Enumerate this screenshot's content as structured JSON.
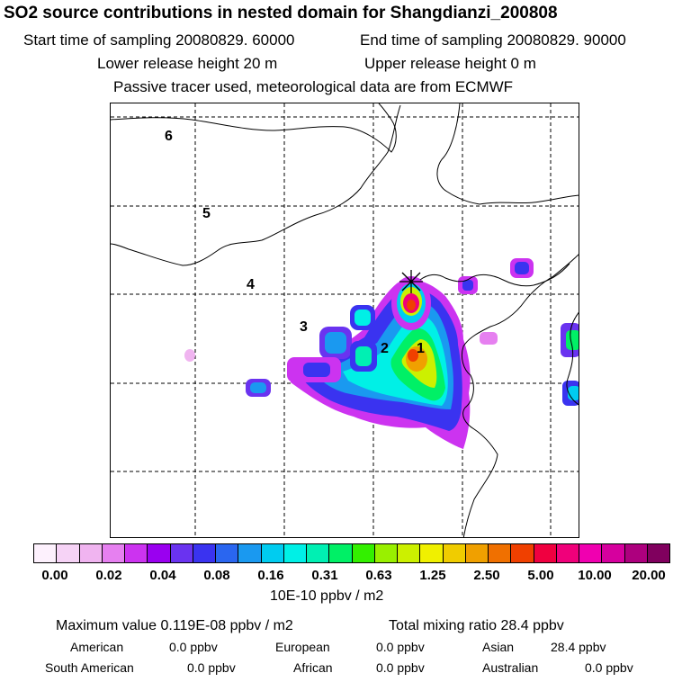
{
  "header": {
    "title": "SO2 source contributions in nested domain for Shangdianzi_200808",
    "start_time": "Start time of sampling 20080829. 60000",
    "end_time": "End time of sampling 20080829. 90000",
    "lower_release": "Lower release height   20 m",
    "upper_release": "Upper release height    0 m",
    "note": "Passive tracer used, meteorological data are from ECMWF"
  },
  "map": {
    "region_labels": [
      "6",
      "5",
      "4",
      "3",
      "2",
      "1"
    ],
    "station_marker": "station-star-icon"
  },
  "colorbar": {
    "colors": [
      "#fdf1fd",
      "#f6d3f6",
      "#f0b4f0",
      "#e680f0",
      "#cc33f0",
      "#9a00f0",
      "#6a33f0",
      "#3a33f0",
      "#2a66f0",
      "#1a99f0",
      "#00ccf0",
      "#00f0e6",
      "#00f0b3",
      "#00f066",
      "#33f000",
      "#99f000",
      "#ccf000",
      "#f0f000",
      "#f0cc00",
      "#f0a000",
      "#f07000",
      "#f04000",
      "#f00040",
      "#f0007a",
      "#f000b0",
      "#d6009e",
      "#ad007e",
      "#80005e"
    ],
    "ticks": [
      "0.00",
      "0.02",
      "0.04",
      "0.08",
      "0.16",
      "0.31",
      "0.63",
      "1.25",
      "2.50",
      "5.00",
      "10.00",
      "20.00"
    ],
    "unit": "10E-10 ppbv / m2"
  },
  "stats": {
    "max_label": "Maximum value  0.119E-08 ppbv / m2",
    "total_label": "Total mixing ratio       28.4 ppbv",
    "regions": [
      {
        "name": "American",
        "value": "0.0 ppbv"
      },
      {
        "name": "European",
        "value": "0.0 ppbv"
      },
      {
        "name": "Asian",
        "value": "28.4 ppbv"
      },
      {
        "name": "South American",
        "value": "0.0 ppbv"
      },
      {
        "name": "African",
        "value": "0.0 ppbv"
      },
      {
        "name": "Australian",
        "value": "0.0 ppbv"
      }
    ]
  }
}
